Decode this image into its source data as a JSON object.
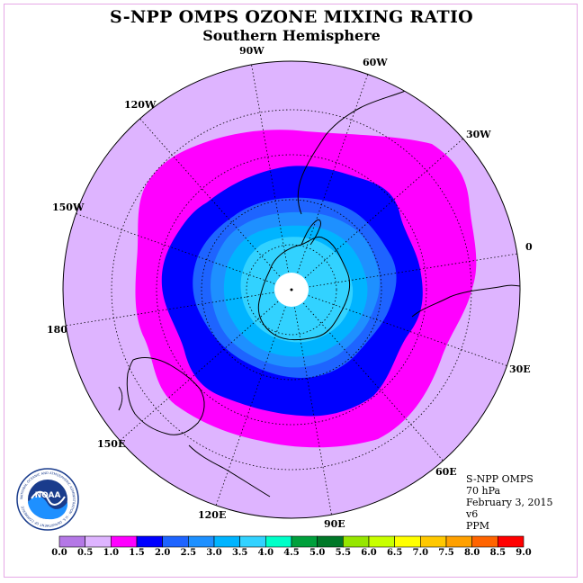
{
  "title": "S-NPP OMPS OZONE MIXING RATIO",
  "subtitle": "Southern Hemisphere",
  "longitude_labels": [
    "90W",
    "60W",
    "30W",
    "0",
    "30E",
    "60E",
    "90E",
    "120E",
    "150E",
    "180",
    "150W",
    "120W"
  ],
  "info": {
    "instrument": "S-NPP OMPS",
    "level": "70 hPa",
    "date": "February 3, 2015",
    "version": "v6",
    "units": "PPM"
  },
  "logo": {
    "text": "NOAA",
    "ring_text": "NATIONAL OCEANIC AND ATMOSPHERIC ADMINISTRATION · U.S. DEPARTMENT OF COMMERCE"
  },
  "colorbar": {
    "ticks": [
      "0.0",
      "0.5",
      "1.0",
      "1.5",
      "2.0",
      "2.5",
      "3.0",
      "3.5",
      "4.0",
      "4.5",
      "5.0",
      "5.5",
      "6.0",
      "6.5",
      "7.0",
      "7.5",
      "8.0",
      "8.5",
      "9.0"
    ],
    "colors": [
      "#b478e6",
      "#deb4ff",
      "#ff00ff",
      "#0000ff",
      "#1e64ff",
      "#1e90ff",
      "#00b4ff",
      "#32d2ff",
      "#00ffc8",
      "#00a03c",
      "#007828",
      "#96e600",
      "#c8ff00",
      "#ffff00",
      "#ffc800",
      "#ffa000",
      "#ff6400",
      "#ff0000",
      "#8c5a3c"
    ]
  },
  "map": {
    "ozone_levels_ppm": [
      0.5,
      1.0,
      1.5,
      2.0,
      2.5,
      3.0,
      3.5
    ]
  }
}
